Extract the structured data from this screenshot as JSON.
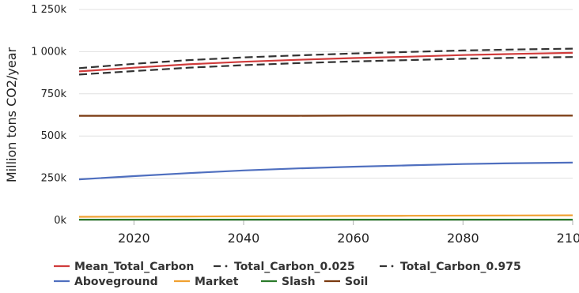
{
  "chart_data": {
    "type": "line",
    "xlabel": "",
    "ylabel": "Million tons CO2/year",
    "xlim": [
      2010,
      2100
    ],
    "ylim": [
      0,
      1250000
    ],
    "xticks": [
      2020,
      2040,
      2060,
      2080,
      2100
    ],
    "xtick_labels": [
      "2020",
      "2040",
      "2060",
      "2080",
      "2100"
    ],
    "yticks": [
      0,
      250000,
      500000,
      750000,
      1000000,
      1250000
    ],
    "ytick_labels": [
      "0k",
      "250k",
      "500k",
      "750k",
      "1 000k",
      "1 250k"
    ],
    "grid": "horizontal",
    "legend_position": "bottom",
    "x": [
      2010,
      2020,
      2030,
      2040,
      2050,
      2060,
      2070,
      2080,
      2090,
      2100
    ],
    "series": [
      {
        "name": "Mean_Total_Carbon",
        "color": "#d03b3b",
        "dash": "solid",
        "values": [
          883000,
          905000,
          925000,
          940000,
          952000,
          962000,
          970000,
          980000,
          987000,
          993000
        ]
      },
      {
        "name": "Total_Carbon_0.025",
        "color": "#333333",
        "dash": "dashed",
        "values": [
          864000,
          885000,
          905000,
          920000,
          932000,
          942000,
          950000,
          958000,
          964000,
          968000
        ]
      },
      {
        "name": "Total_Carbon_0.975",
        "color": "#333333",
        "dash": "dashed",
        "values": [
          902000,
          928000,
          950000,
          966000,
          978000,
          989000,
          998000,
          1007000,
          1013000,
          1018000
        ]
      },
      {
        "name": "Aboveground",
        "color": "#4f6fbf",
        "dash": "solid",
        "values": [
          243000,
          262000,
          280000,
          296000,
          308000,
          318000,
          326000,
          334000,
          339000,
          342000
        ]
      },
      {
        "name": "Market",
        "color": "#f0a030",
        "dash": "solid",
        "values": [
          21000,
          22000,
          23000,
          24000,
          25000,
          26000,
          27000,
          28000,
          29000,
          30000
        ]
      },
      {
        "name": "Slash",
        "color": "#2a7a2a",
        "dash": "solid",
        "values": [
          4000,
          4000,
          4000,
          4000,
          4000,
          4000,
          4000,
          4000,
          4000,
          4000
        ]
      },
      {
        "name": "Soil",
        "color": "#7a3a10",
        "dash": "solid",
        "values": [
          620000,
          620000,
          620000,
          620000,
          620000,
          621000,
          621000,
          621000,
          621000,
          621000
        ]
      }
    ]
  }
}
